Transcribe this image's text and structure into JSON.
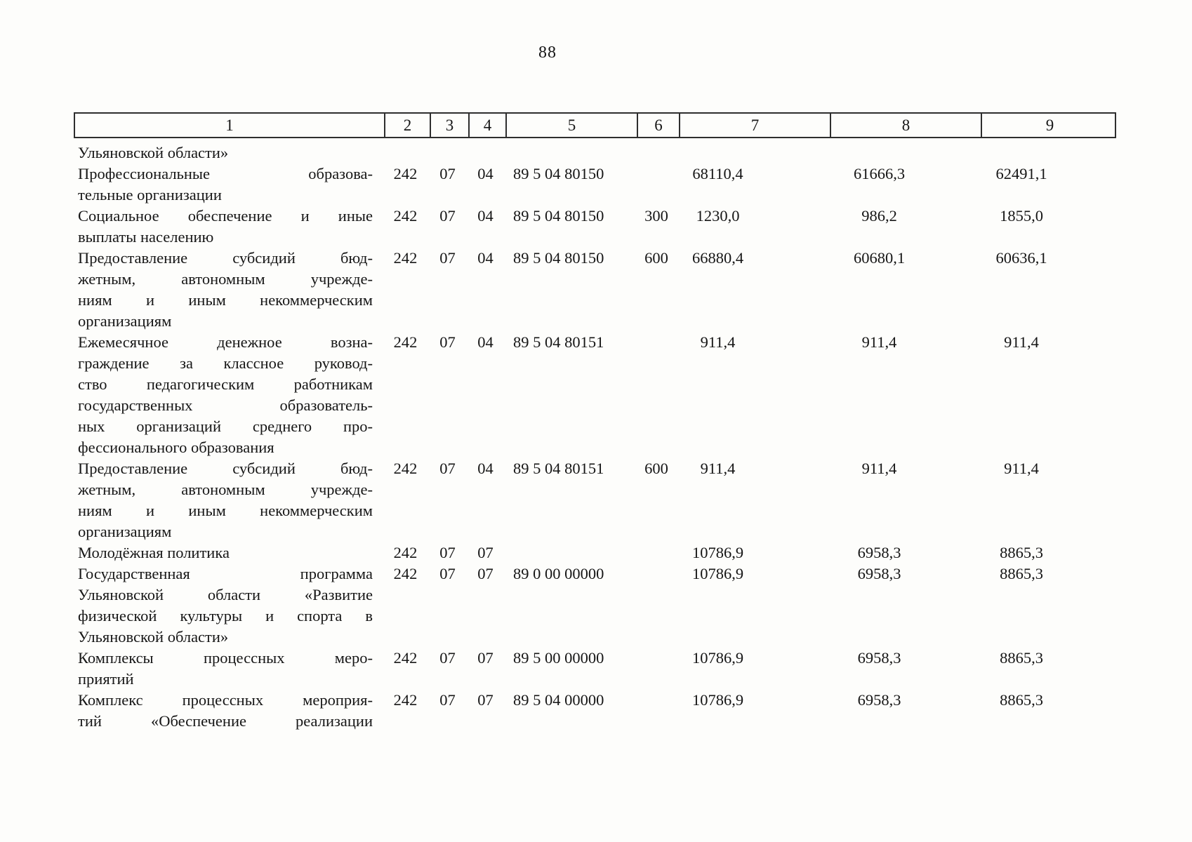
{
  "page_number": "88",
  "table": {
    "column_numbers": [
      "1",
      "2",
      "3",
      "4",
      "5",
      "6",
      "7",
      "8",
      "9"
    ],
    "rows": [
      {
        "c1_lines": [
          "Ульяновской области»"
        ],
        "c2": "",
        "c3": "",
        "c4": "",
        "c5": "",
        "c6": "",
        "c7": "",
        "c8": "",
        "c9": ""
      },
      {
        "c1_lines": [
          "Профессиональные образова-",
          "тельные организации"
        ],
        "c2": "242",
        "c3": "07",
        "c4": "04",
        "c5": "89 5 04 80150",
        "c6": "",
        "c7": "68110,4",
        "c8": "61666,3",
        "c9": "62491,1"
      },
      {
        "c1_lines": [
          "Социальное обеспечение и иные",
          "выплаты населению"
        ],
        "c2": "242",
        "c3": "07",
        "c4": "04",
        "c5": "89 5 04 80150",
        "c6": "300",
        "c7": "1230,0",
        "c8": "986,2",
        "c9": "1855,0"
      },
      {
        "c1_lines": [
          "Предоставление субсидий бюд-",
          "жетным, автономным учрежде-",
          "ниям и иным некоммерческим",
          "организациям"
        ],
        "c2": "242",
        "c3": "07",
        "c4": "04",
        "c5": "89 5 04 80150",
        "c6": "600",
        "c7": "66880,4",
        "c8": "60680,1",
        "c9": "60636,1"
      },
      {
        "c1_lines": [
          "Ежемесячное денежное возна-",
          "граждение за классное руковод-",
          "ство педагогическим работникам",
          "государственных образователь-",
          "ных организаций среднего про-",
          "фессионального образования"
        ],
        "c2": "242",
        "c3": "07",
        "c4": "04",
        "c5": "89 5 04 80151",
        "c6": "",
        "c7": "911,4",
        "c8": "911,4",
        "c9": "911,4"
      },
      {
        "c1_lines": [
          "Предоставление субсидий бюд-",
          "жетным, автономным учрежде-",
          "ниям и иным некоммерческим",
          "организациям"
        ],
        "c2": "242",
        "c3": "07",
        "c4": "04",
        "c5": "89 5 04 80151",
        "c6": "600",
        "c7": "911,4",
        "c8": "911,4",
        "c9": "911,4"
      },
      {
        "c1_lines": [
          "Молодёжная политика"
        ],
        "c2": "242",
        "c3": "07",
        "c4": "07",
        "c5": "",
        "c6": "",
        "c7": "10786,9",
        "c8": "6958,3",
        "c9": "8865,3"
      },
      {
        "c1_lines": [
          "Государственная программа",
          "Ульяновской области «Развитие",
          "физической культуры и спорта в",
          "Ульяновской области»"
        ],
        "c2": "242",
        "c3": "07",
        "c4": "07",
        "c5": "89 0 00 00000",
        "c6": "",
        "c7": "10786,9",
        "c8": "6958,3",
        "c9": "8865,3"
      },
      {
        "c1_lines": [
          "Комплексы процессных меро-",
          "приятий"
        ],
        "c2": "242",
        "c3": "07",
        "c4": "07",
        "c5": "89 5 00 00000",
        "c6": "",
        "c7": "10786,9",
        "c8": "6958,3",
        "c9": "8865,3"
      },
      {
        "c1_lines": [
          "Комплекс процессных мероприя-",
          "тий «Обеспечение реализации"
        ],
        "justify_all": true,
        "c2": "242",
        "c3": "07",
        "c4": "07",
        "c5": "89 5 04 00000",
        "c6": "",
        "c7": "10786,9",
        "c8": "6958,3",
        "c9": "8865,3"
      }
    ]
  }
}
